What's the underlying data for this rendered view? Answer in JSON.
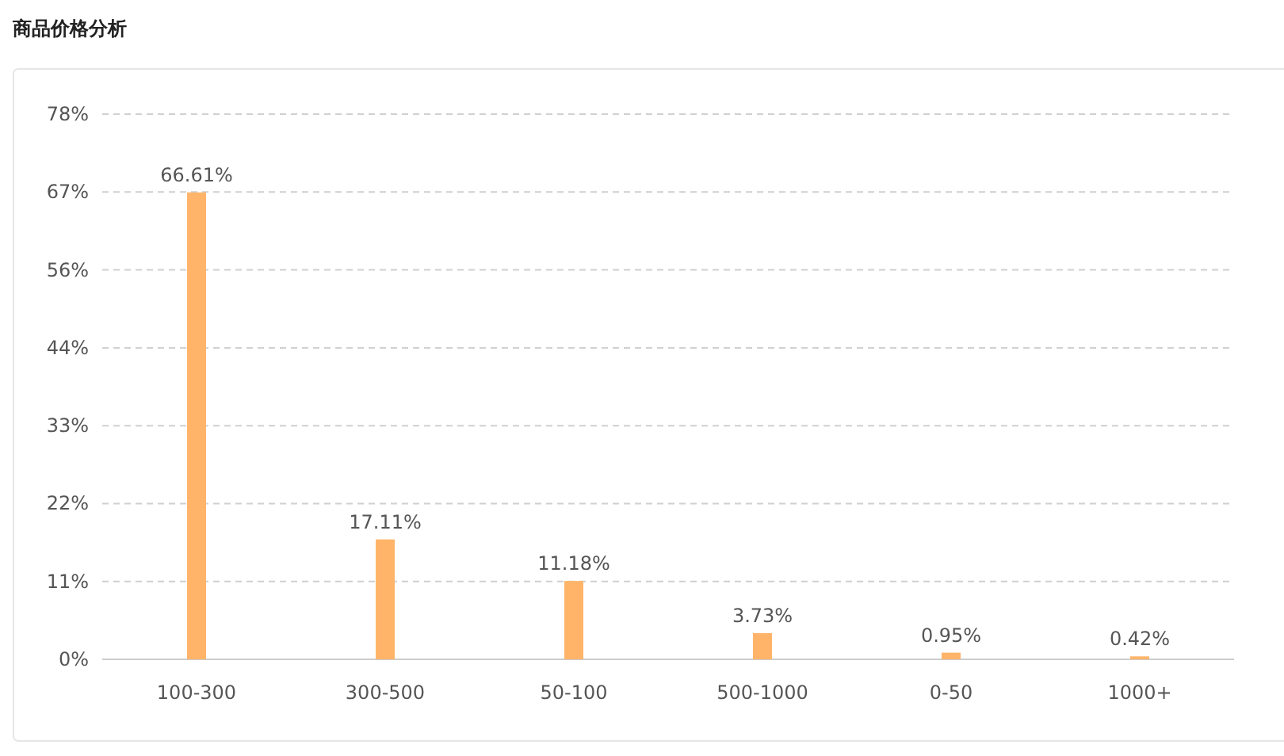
{
  "chart_data": {
    "type": "bar",
    "title": "商品价格分析",
    "categories": [
      "100-300",
      "300-500",
      "50-100",
      "500-1000",
      "0-50",
      "1000+"
    ],
    "values": [
      66.61,
      17.11,
      11.18,
      3.73,
      0.95,
      0.42
    ],
    "value_labels": [
      "66.61%",
      "17.11%",
      "11.18%",
      "3.73%",
      "0.95%",
      "0.42%"
    ],
    "color": "#ffb469",
    "ylim": [
      0,
      77.78
    ],
    "yticks": [
      {
        "value": 0,
        "label": "0%"
      },
      {
        "value": 11.11,
        "label": "11%"
      },
      {
        "value": 22.22,
        "label": "22%"
      },
      {
        "value": 33.33,
        "label": "33%"
      },
      {
        "value": 44.44,
        "label": "44%"
      },
      {
        "value": 55.56,
        "label": "56%"
      },
      {
        "value": 66.67,
        "label": "67%"
      },
      {
        "value": 77.78,
        "label": "78%"
      }
    ],
    "grid": "y"
  }
}
